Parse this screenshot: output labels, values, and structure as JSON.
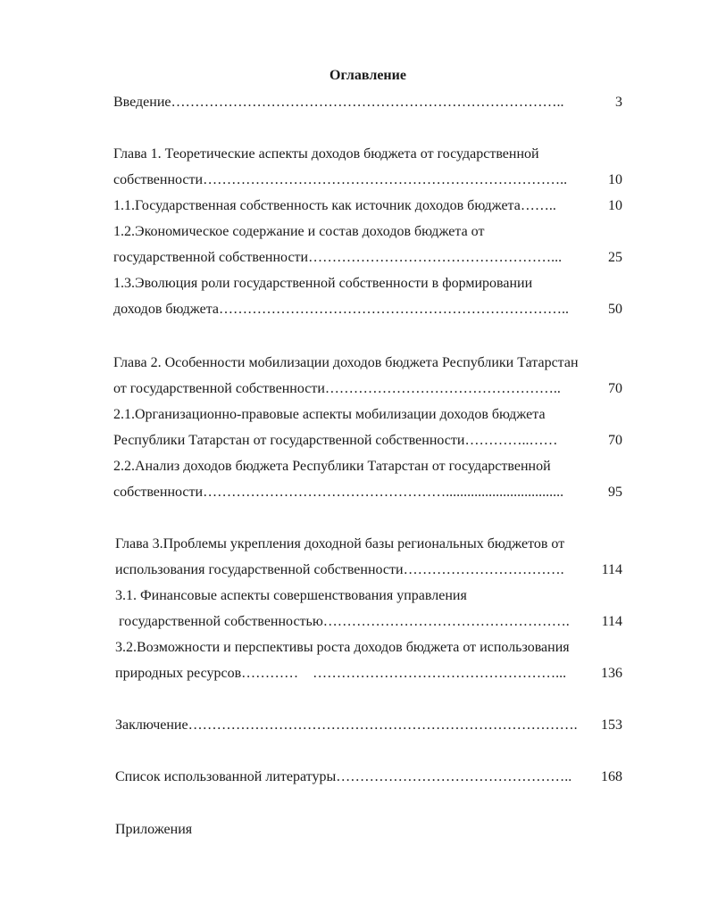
{
  "title": "Оглавление",
  "entries": [
    {
      "lines": [
        "Введение……………………………………………………………………….."
      ],
      "page": "3"
    },
    {
      "lines": [
        "Глава 1. Теоретические аспекты доходов бюджета от государственной",
        "собственности………………………………………………………………….."
      ],
      "page": "10"
    },
    {
      "lines": [
        "1.1.Государственная собственность как источник доходов бюджета…….."
      ],
      "page": "10"
    },
    {
      "lines": [
        "1.2.Экономическое содержание и состав доходов бюджета от",
        "государственной собственности……………………………………………..."
      ],
      "page": "25"
    },
    {
      "lines": [
        "1.3.Эволюция роли государственной собственности в формировании",
        "доходов бюджета……………………………………………………………….."
      ],
      "page": "50"
    },
    {
      "lines": [
        "Глава 2. Особенности мобилизации доходов бюджета Республики Татарстан",
        "от государственной собственности………………………………………….."
      ],
      "page": "70"
    },
    {
      "lines": [
        "2.1.Организационно-правовые аспекты мобилизации доходов бюджета",
        "Республики Татарстан от государственной собственности…………..……"
      ],
      "page": "70"
    },
    {
      "lines": [
        "2.2.Анализ доходов бюджета Республики Татарстан от государственной",
        "собственности……………………………………………................................."
      ],
      "page": "95"
    },
    {
      "lines": [
        "Глава 3.Проблемы укрепления доходной базы региональных бюджетов от",
        "использования государственной собственности……………………………."
      ],
      "page": "114"
    },
    {
      "lines": [
        "3.1. Финансовые аспекты совершенствования управления",
        " государственной собственностью……………………………………………."
      ],
      "page": "114"
    },
    {
      "lines": [
        "3.2.Возможности и перспективы роста доходов бюджета от использования",
        "природных ресурсов…………    ……………………………………………..."
      ],
      "page": "136"
    },
    {
      "lines": [
        "Заключение………………………………………………………………………."
      ],
      "page": "153"
    },
    {
      "lines": [
        "Список использованной литературы………………………………………….."
      ],
      "page": "168"
    },
    {
      "lines": [
        "Приложения"
      ],
      "page": ""
    }
  ]
}
